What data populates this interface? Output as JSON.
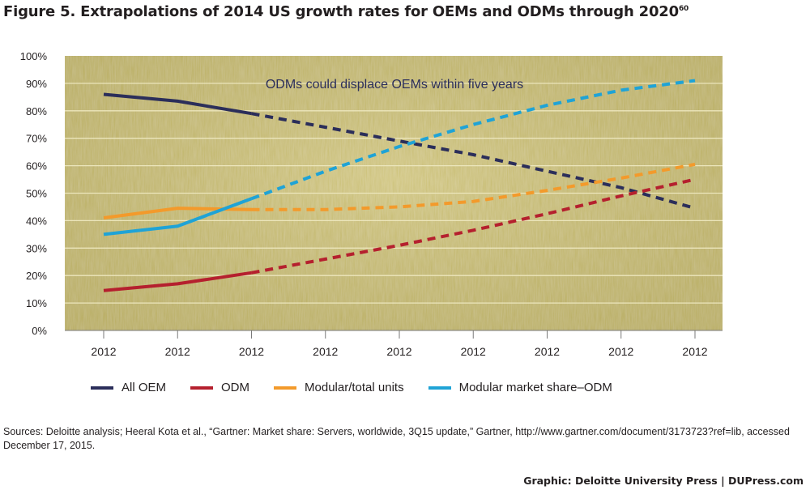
{
  "figure": {
    "title": "Figure 5. Extrapolations of 2014 US growth rates for OEMs and ODMs through 2020",
    "footnote": "60",
    "source": "Sources: Deloitte analysis; Heeral Kota et al., “Gartner: Market share: Servers, worldwide, 3Q15 update,” Gartner, http://www.gartner.com/document/3173723?ref=lib, accessed December 17, 2015.",
    "credit": "Graphic: Deloitte University Press  |  DUPress.com"
  },
  "colors": {
    "background": "#c8bb66",
    "gridline": "#ece6bc",
    "All OEM": "#2b2e5a",
    "ODM": "#b5202e",
    "Modular/total units": "#f39a2b",
    "Modular market share–ODM": "#1fa3d6"
  },
  "chart_data": {
    "type": "line",
    "annotation": "ODMs could displace OEMs within five years",
    "categories": [
      "2012",
      "2012",
      "2012",
      "2012",
      "2012",
      "2012",
      "2012",
      "2012",
      "2012"
    ],
    "y_ticks": [
      "0%",
      "10%",
      "20%",
      "30%",
      "40%",
      "50%",
      "60%",
      "70%",
      "80%",
      "90%",
      "100%"
    ],
    "ylim": [
      0,
      100
    ],
    "grid": true,
    "legend_position": "bottom",
    "actual_through_index": 2,
    "note": "solid lines = actual data; dashed lines = extrapolation",
    "series": [
      {
        "name": "All OEM",
        "values": [
          86,
          83.5,
          79,
          74,
          69,
          64,
          58,
          52,
          44.5
        ]
      },
      {
        "name": "ODM",
        "values": [
          14.5,
          17,
          21,
          26,
          31,
          36.5,
          42.5,
          49,
          55
        ]
      },
      {
        "name": "Modular/total units",
        "values": [
          41,
          44.5,
          44,
          44,
          45,
          47,
          51,
          55.5,
          60.5
        ]
      },
      {
        "name": "Modular market share–ODM",
        "values": [
          35,
          38,
          48,
          58,
          67,
          75,
          82,
          87.5,
          91
        ]
      }
    ]
  }
}
